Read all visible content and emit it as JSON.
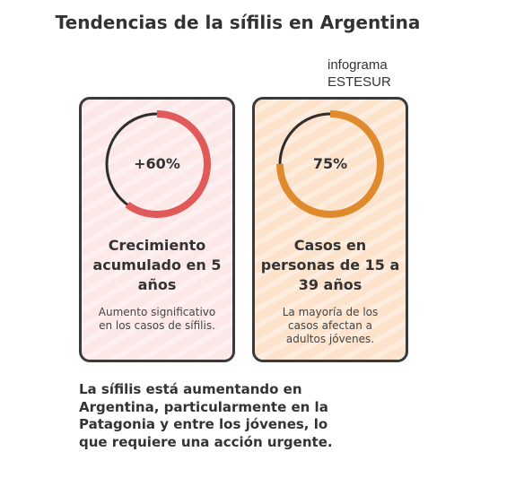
{
  "title": "Tendencias de la sífilis en Argentina",
  "source": "infograma ESTESUR",
  "cards": [
    {
      "value": "+60%",
      "heading": "Crecimiento acumulado en 5 años",
      "description": "Aumento significativo en los casos de sífilis.",
      "ring_fill": 0.6,
      "color": "#e05a5a",
      "background": "#fde8e8"
    },
    {
      "value": "75%",
      "heading": "Casos en personas de 15 a 39 años",
      "description": "La mayoría de los casos afectan a adultos jóvenes.",
      "ring_fill": 0.75,
      "color": "#e08a2e",
      "background": "#fde3cc"
    }
  ],
  "summary": "La sífilis está aumentando en Argentina, particularmente en la Patagonia y entre los jóvenes, lo que requiere una acción urgente."
}
